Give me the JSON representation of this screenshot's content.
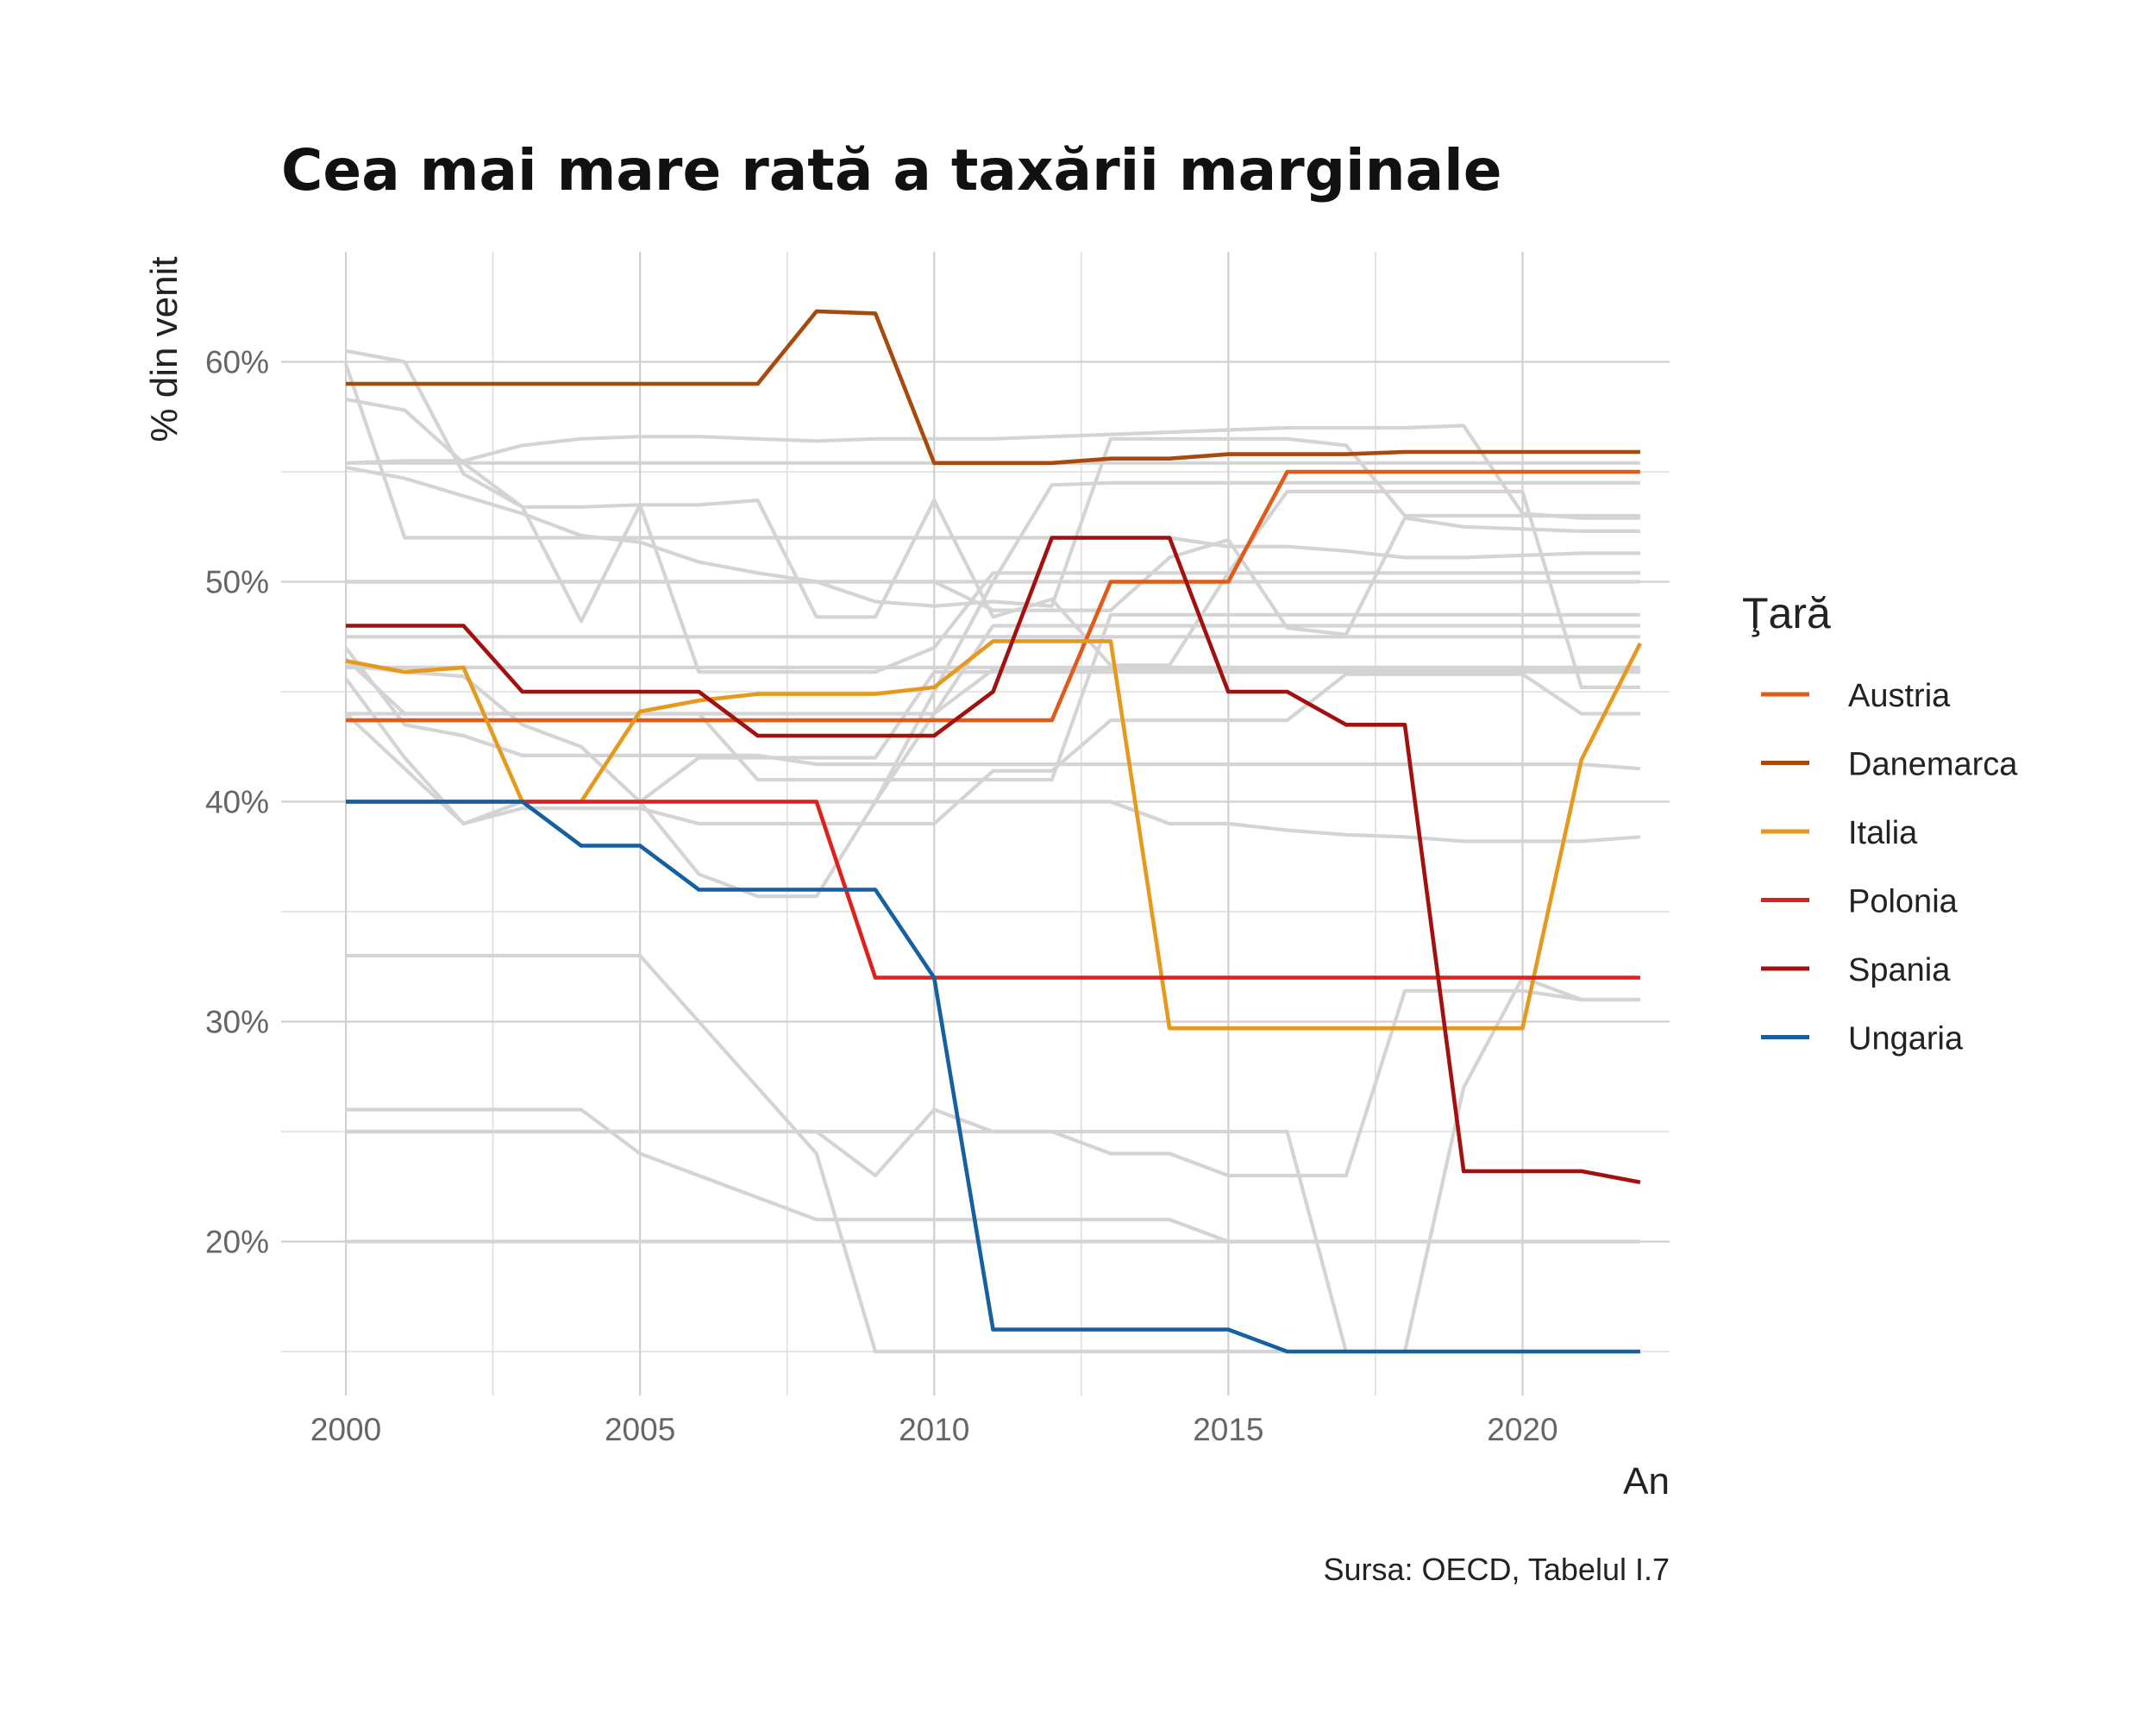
{
  "chart_data": {
    "type": "line",
    "title": "Cea mai mare rată a taxării marginale",
    "xlabel": "An",
    "ylabel": "% din venit",
    "caption": "Sursa: OECD, Tabelul I.7",
    "legend_title": "Ţară",
    "legend_position": "right",
    "grid": true,
    "xlim": [
      1998.9,
      2022.5
    ],
    "ylim": [
      13,
      65
    ],
    "x_ticks": [
      2000,
      2005,
      2010,
      2015,
      2020
    ],
    "x_tick_labels": [
      "2000",
      "2005",
      "2010",
      "2015",
      "2020"
    ],
    "y_ticks": [
      20,
      30,
      40,
      50,
      60
    ],
    "y_tick_labels": [
      "20%",
      "30%",
      "40%",
      "50%",
      "60%"
    ],
    "x": [
      2000,
      2001,
      2002,
      2003,
      2004,
      2005,
      2006,
      2007,
      2008,
      2009,
      2010,
      2011,
      2012,
      2013,
      2014,
      2015,
      2016,
      2017,
      2018,
      2019,
      2020,
      2021,
      2022
    ],
    "series": [
      {
        "name": "Austria",
        "color": "#e05a1a",
        "values": [
          43.7,
          43.7,
          43.7,
          43.7,
          43.7,
          43.7,
          43.7,
          43.7,
          43.7,
          43.7,
          43.7,
          43.7,
          43.7,
          50,
          50,
          50,
          55,
          55,
          55,
          55,
          55,
          55,
          55
        ]
      },
      {
        "name": "Danemarca",
        "color": "#a84a0c",
        "values": [
          59,
          59,
          59,
          59,
          59,
          59,
          59,
          59,
          62.3,
          62.2,
          55.4,
          55.4,
          55.4,
          55.6,
          55.6,
          55.8,
          55.8,
          55.8,
          55.9,
          55.9,
          55.9,
          55.9,
          55.9
        ]
      },
      {
        "name": "Italia",
        "color": "#e5991e",
        "values": [
          46.4,
          45.9,
          46.1,
          40,
          40,
          44.1,
          44.6,
          44.9,
          44.9,
          44.9,
          45.2,
          47.3,
          47.3,
          47.3,
          29.7,
          29.7,
          29.7,
          29.7,
          29.7,
          29.7,
          29.7,
          41.9,
          47.2
        ]
      },
      {
        "name": "Polonia",
        "color": "#e0201a",
        "values": [
          40,
          40,
          40,
          40,
          40,
          40,
          40,
          40,
          40,
          32,
          32,
          32,
          32,
          32,
          32,
          32,
          32,
          32,
          32,
          32,
          32,
          32,
          32
        ]
      },
      {
        "name": "Spania",
        "color": "#a31010",
        "values": [
          48,
          48,
          48,
          45,
          45,
          45,
          45,
          43,
          43,
          43,
          43,
          45,
          52,
          52,
          52,
          45,
          45,
          43.5,
          43.5,
          23.2,
          23.2,
          23.2,
          22.7
        ]
      },
      {
        "name": "Ungaria",
        "color": "#1460a0",
        "values": [
          40,
          40,
          40,
          40,
          38,
          38,
          36,
          36,
          36,
          36,
          32,
          16,
          16,
          16,
          16,
          16,
          15,
          15,
          15,
          15,
          15,
          15,
          15
        ]
      }
    ],
    "background_series_color": "#d4d4d4",
    "background_series": [
      {
        "values": [
          60.5,
          60,
          54.9,
          53.4,
          48.2,
          53.5,
          45.9,
          45.9,
          45.9,
          45.9,
          47,
          50.4,
          50.4,
          50.4,
          50.4,
          50.4,
          50.4,
          50.4,
          50.4,
          50.4,
          50.4,
          50.4,
          50.4
        ]
      },
      {
        "values": [
          58.3,
          57.8,
          55.4,
          53.4,
          53.4,
          53.5,
          53.5,
          53.7,
          48.4,
          48.4,
          53.7,
          48.4,
          49.2,
          46.2,
          46.2,
          50.4,
          54.1,
          54.1,
          54.1,
          54.1,
          54.1,
          45.2,
          45.2
        ]
      },
      {
        "values": [
          55.4,
          55.5,
          55.5,
          56.2,
          56.5,
          56.6,
          56.6,
          56.5,
          56.4,
          56.5,
          56.5,
          56.5,
          56.6,
          56.7,
          56.8,
          56.9,
          57,
          57,
          57,
          57.1,
          53.1,
          52.9,
          52.9
        ]
      },
      {
        "values": [
          55.2,
          54.7,
          53.9,
          53.1,
          52.1,
          51.8,
          50.9,
          50.4,
          50,
          49.1,
          48.9,
          49.1,
          48.9,
          56.5,
          56.5,
          56.5,
          56.5,
          56.2,
          53,
          53,
          53,
          53,
          53
        ]
      },
      {
        "values": [
          59.9,
          52,
          52,
          52,
          52,
          52,
          52,
          52,
          52,
          52,
          52,
          52,
          52,
          52,
          52,
          51.6,
          51.6,
          51.4,
          51.1,
          51.1,
          51.2,
          51.3,
          51.3
        ]
      },
      {
        "values": [
          50,
          50,
          50,
          50,
          50,
          50,
          50,
          50,
          50,
          50,
          50,
          48.7,
          48.7,
          48.7,
          51.1,
          51.9,
          47.9,
          47.6,
          52.9,
          52.5,
          52.4,
          52.3,
          52.3
        ]
      },
      {
        "values": [
          47.5,
          47.5,
          47.5,
          47.5,
          47.5,
          47.5,
          47.5,
          47.5,
          47.5,
          47.5,
          47.5,
          47.5,
          47.5,
          47.5,
          47.5,
          47.5,
          47.5,
          47.5,
          47.5,
          47.5,
          47.5,
          47.5,
          47.5
        ]
      },
      {
        "values": [
          46.5,
          44,
          44,
          44,
          44,
          44,
          44,
          44,
          44,
          44,
          44,
          46,
          46,
          46,
          46,
          46,
          46,
          46,
          46,
          46,
          46,
          46,
          46
        ]
      },
      {
        "values": [
          46.2,
          45.9,
          45.7,
          43.5,
          42.5,
          40,
          42,
          42,
          42,
          42,
          45.9,
          45.9,
          45.9,
          45.9,
          45.9,
          45.9,
          45.9,
          45.9,
          45.9,
          45.9,
          45.9,
          45.9,
          45.9
        ]
      },
      {
        "values": [
          47,
          43.5,
          43,
          42.1,
          42.1,
          42.1,
          42.1,
          42.1,
          41.7,
          41.7,
          41.7,
          41.7,
          41.7,
          41.7,
          41.7,
          41.7,
          41.7,
          41.7,
          41.7,
          41.7,
          41.7,
          41.7,
          41.5
        ]
      },
      {
        "values": [
          45.6,
          42,
          39,
          39.7,
          39.7,
          39.7,
          39,
          39,
          39,
          39,
          39,
          41.4,
          41.4,
          43.7,
          43.7,
          43.7,
          43.7,
          45.8,
          45.8,
          45.8,
          45.8,
          44,
          44
        ]
      },
      {
        "values": [
          44,
          41.5,
          39,
          40,
          40,
          40,
          36.7,
          35.7,
          35.7,
          40,
          44,
          48,
          48,
          48,
          48,
          48,
          48,
          48,
          48,
          48,
          48,
          48,
          48
        ]
      },
      {
        "values": [
          44,
          44,
          44,
          44,
          44,
          44,
          44,
          41,
          41,
          41,
          41,
          41,
          41,
          48.5,
          48.5,
          48.5,
          48.5,
          48.5,
          48.5,
          48.5,
          48.5,
          48.5,
          48.5
        ]
      },
      {
        "values": [
          40,
          40,
          40,
          40,
          40,
          40,
          40,
          40,
          40,
          40,
          40,
          40,
          40,
          40,
          39,
          39,
          38.7,
          38.5,
          38.4,
          38.2,
          38.2,
          38.2,
          38.4
        ]
      },
      {
        "values": [
          33,
          33,
          33,
          33,
          33,
          33,
          30,
          27,
          24,
          15,
          15,
          15,
          15,
          15,
          15,
          15,
          15,
          15,
          15,
          15,
          15,
          15,
          15
        ]
      },
      {
        "values": [
          26,
          26,
          26,
          26,
          26,
          24,
          23,
          22,
          21,
          21,
          21,
          21,
          21,
          21,
          21,
          20,
          20,
          20,
          20,
          20,
          20,
          20,
          20
        ]
      },
      {
        "values": [
          25,
          25,
          25,
          25,
          25,
          25,
          25,
          25,
          25,
          23,
          26,
          25,
          25,
          24,
          24,
          23,
          23,
          23,
          31.4,
          31.4,
          31.4,
          31,
          31
        ]
      },
      {
        "values": [
          25,
          25,
          25,
          25,
          25,
          25,
          25,
          25,
          25,
          25,
          25,
          25,
          25,
          25,
          25,
          25,
          25,
          15,
          15,
          27,
          32,
          31,
          31
        ]
      },
      {
        "values": [
          40,
          40,
          40,
          40,
          40,
          40,
          40,
          40,
          40,
          40,
          45,
          50,
          54.4,
          54.5,
          54.5,
          54.5,
          54.5,
          54.5,
          54.5,
          54.5,
          54.5,
          54.5,
          54.5
        ]
      },
      {
        "values": [
          55.4,
          55.4,
          55.4,
          55.4,
          55.4,
          55.4,
          55.4,
          55.4,
          55.4,
          55.4,
          55.4,
          55.4,
          55.4,
          55.4,
          55.4,
          55.4,
          55.4,
          55.4,
          55.4,
          55.4,
          55.4,
          55.4,
          55.4
        ]
      },
      {
        "values": [
          50,
          50,
          50,
          50,
          50,
          50,
          50,
          50,
          50,
          50,
          50,
          50,
          50,
          50,
          50,
          50,
          50,
          50,
          50,
          50,
          50,
          50,
          50
        ]
      },
      {
        "values": [
          46.1,
          46.1,
          46.1,
          46.1,
          46.1,
          46.1,
          46.1,
          46.1,
          46.1,
          46.1,
          46.1,
          46.1,
          46.1,
          46.1,
          46.1,
          46.1,
          46.1,
          46.1,
          46.1,
          46.1,
          46.1,
          46.1,
          46.1
        ]
      },
      {
        "values": [
          20,
          20,
          20,
          20,
          20,
          20,
          20,
          20,
          20,
          20,
          20,
          20,
          20,
          20,
          20,
          20,
          20,
          20,
          20,
          20,
          20,
          20,
          20
        ]
      }
    ]
  }
}
